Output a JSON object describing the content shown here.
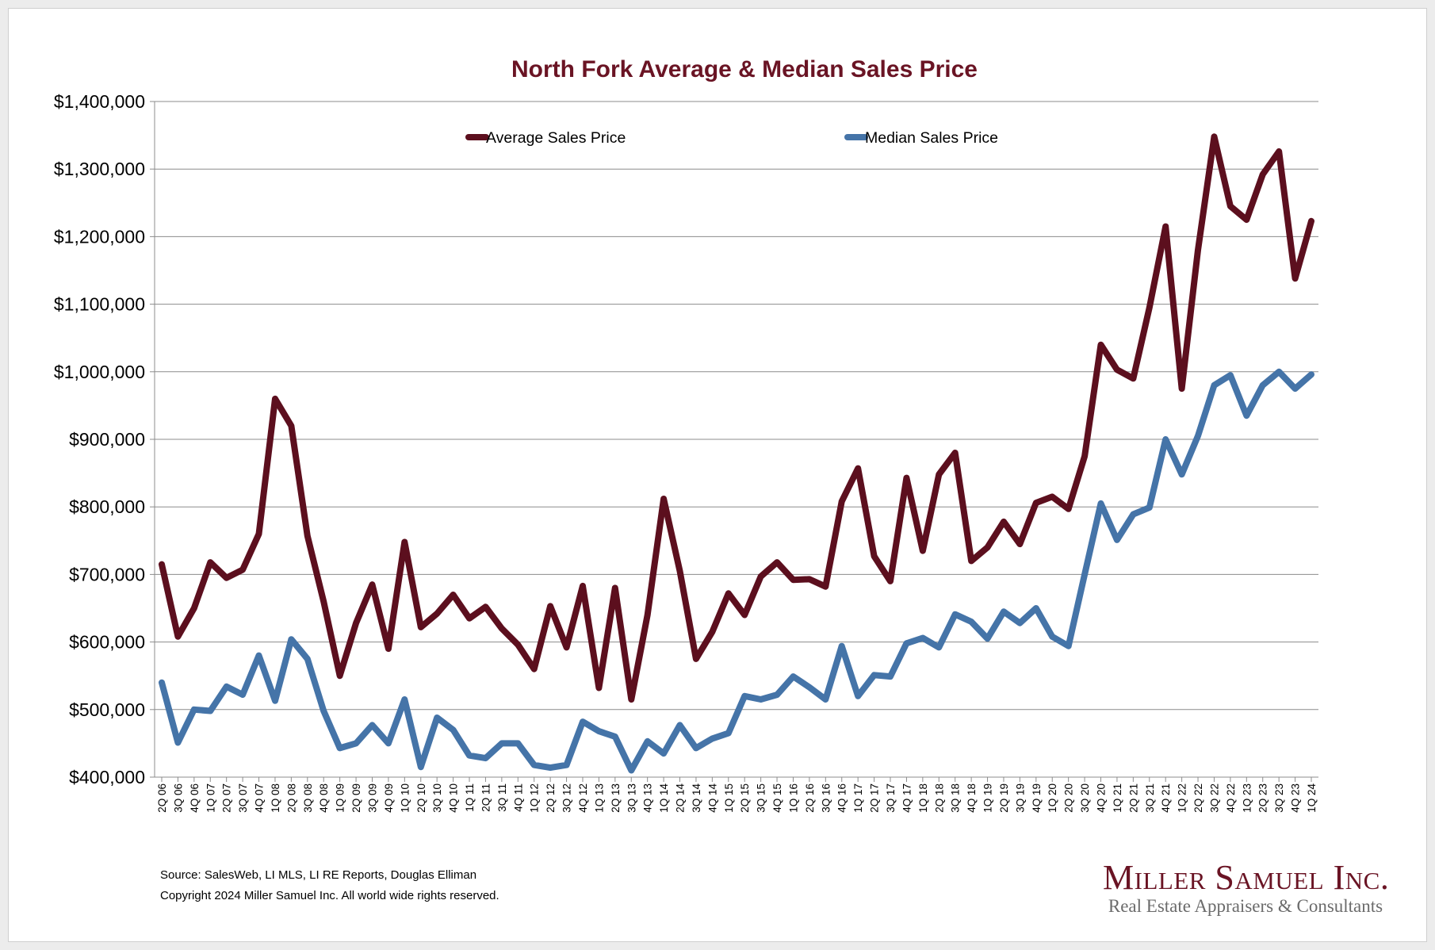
{
  "chart_data": {
    "type": "line",
    "title": "North Fork Average & Median Sales Price",
    "xlabel": "",
    "ylabel": "",
    "ylim": [
      400000,
      1400000
    ],
    "yticks": [
      400000,
      500000,
      600000,
      700000,
      800000,
      900000,
      1000000,
      1100000,
      1200000,
      1300000,
      1400000
    ],
    "ytick_labels": [
      "$400,000",
      "$500,000",
      "$600,000",
      "$700,000",
      "$800,000",
      "$900,000",
      "$1,000,000",
      "$1,100,000",
      "$1,200,000",
      "$1,300,000",
      "$1,400,000"
    ],
    "grid": "horizontal",
    "legend_placement": "top",
    "categories": [
      "2Q 06",
      "3Q 06",
      "4Q 06",
      "1Q 07",
      "2Q 07",
      "3Q 07",
      "4Q 07",
      "1Q 08",
      "2Q 08",
      "3Q 08",
      "4Q 08",
      "1Q 09",
      "2Q 09",
      "3Q 09",
      "4Q 09",
      "1Q 10",
      "2Q 10",
      "3Q 10",
      "4Q 10",
      "1Q 11",
      "2Q 11",
      "3Q 11",
      "4Q 11",
      "1Q 12",
      "2Q 12",
      "3Q 12",
      "4Q 12",
      "1Q 13",
      "2Q 13",
      "3Q 13",
      "4Q 13",
      "1Q 14",
      "2Q 14",
      "3Q 14",
      "4Q 14",
      "1Q 15",
      "2Q 15",
      "3Q 15",
      "4Q 15",
      "1Q 16",
      "2Q 16",
      "3Q 16",
      "4Q 16",
      "1Q 17",
      "2Q 17",
      "3Q 17",
      "4Q 17",
      "1Q 18",
      "2Q 18",
      "3Q 18",
      "4Q 18",
      "1Q 19",
      "2Q 19",
      "3Q 19",
      "4Q 19",
      "1Q 20",
      "2Q 20",
      "3Q 20",
      "4Q 20",
      "1Q 21",
      "2Q 21",
      "3Q 21",
      "4Q 21",
      "1Q 22",
      "2Q 22",
      "3Q 22",
      "4Q 22",
      "1Q 23",
      "2Q 23",
      "3Q 23",
      "4Q 23",
      "1Q 24"
    ],
    "series": [
      {
        "name": "Average Sales Price",
        "color": "#5c0f1e",
        "values": [
          715000,
          608000,
          650000,
          718000,
          695000,
          707000,
          760000,
          960000,
          920000,
          757000,
          660000,
          550000,
          628000,
          685000,
          590000,
          748000,
          622000,
          642000,
          670000,
          635000,
          652000,
          620000,
          596000,
          560000,
          653000,
          592000,
          683000,
          532000,
          680000,
          515000,
          640000,
          812000,
          705000,
          575000,
          615000,
          672000,
          640000,
          697000,
          718000,
          692000,
          693000,
          682000,
          808000,
          857000,
          727000,
          690000,
          843000,
          735000,
          848000,
          880000,
          720000,
          740000,
          778000,
          745000,
          806000,
          815000,
          797000,
          875000,
          1040000,
          1003000,
          990000,
          1095000,
          1215000,
          975000,
          1180000,
          1348000,
          1245000,
          1225000,
          1292000,
          1326000,
          1138000,
          1223000
        ]
      },
      {
        "name": "Median Sales Price",
        "color": "#4574a8",
        "values": [
          540000,
          451000,
          500000,
          498000,
          534000,
          522000,
          580000,
          513000,
          604000,
          575000,
          498000,
          443000,
          450000,
          477000,
          450000,
          515000,
          415000,
          488000,
          470000,
          432000,
          428000,
          450000,
          450000,
          418000,
          414000,
          418000,
          482000,
          468000,
          460000,
          410000,
          453000,
          435000,
          477000,
          443000,
          457000,
          465000,
          520000,
          515000,
          522000,
          549000,
          533000,
          515000,
          594000,
          520000,
          551000,
          549000,
          598000,
          606000,
          592000,
          641000,
          630000,
          605000,
          645000,
          628000,
          650000,
          608000,
          594000,
          700000,
          805000,
          751000,
          789000,
          799000,
          900000,
          848000,
          905000,
          980000,
          995000,
          935000,
          980000,
          1000000,
          975000,
          996000
        ]
      }
    ]
  },
  "footer": {
    "source": "Source: SalesWeb, LI MLS, LI RE Reports, Douglas Elliman",
    "copyright": "Copyright 2024 Miller Samuel Inc.  All world wide rights reserved."
  },
  "logo": {
    "name": "Miller Samuel Inc.",
    "tagline": "Real Estate Appraisers & Consultants"
  }
}
